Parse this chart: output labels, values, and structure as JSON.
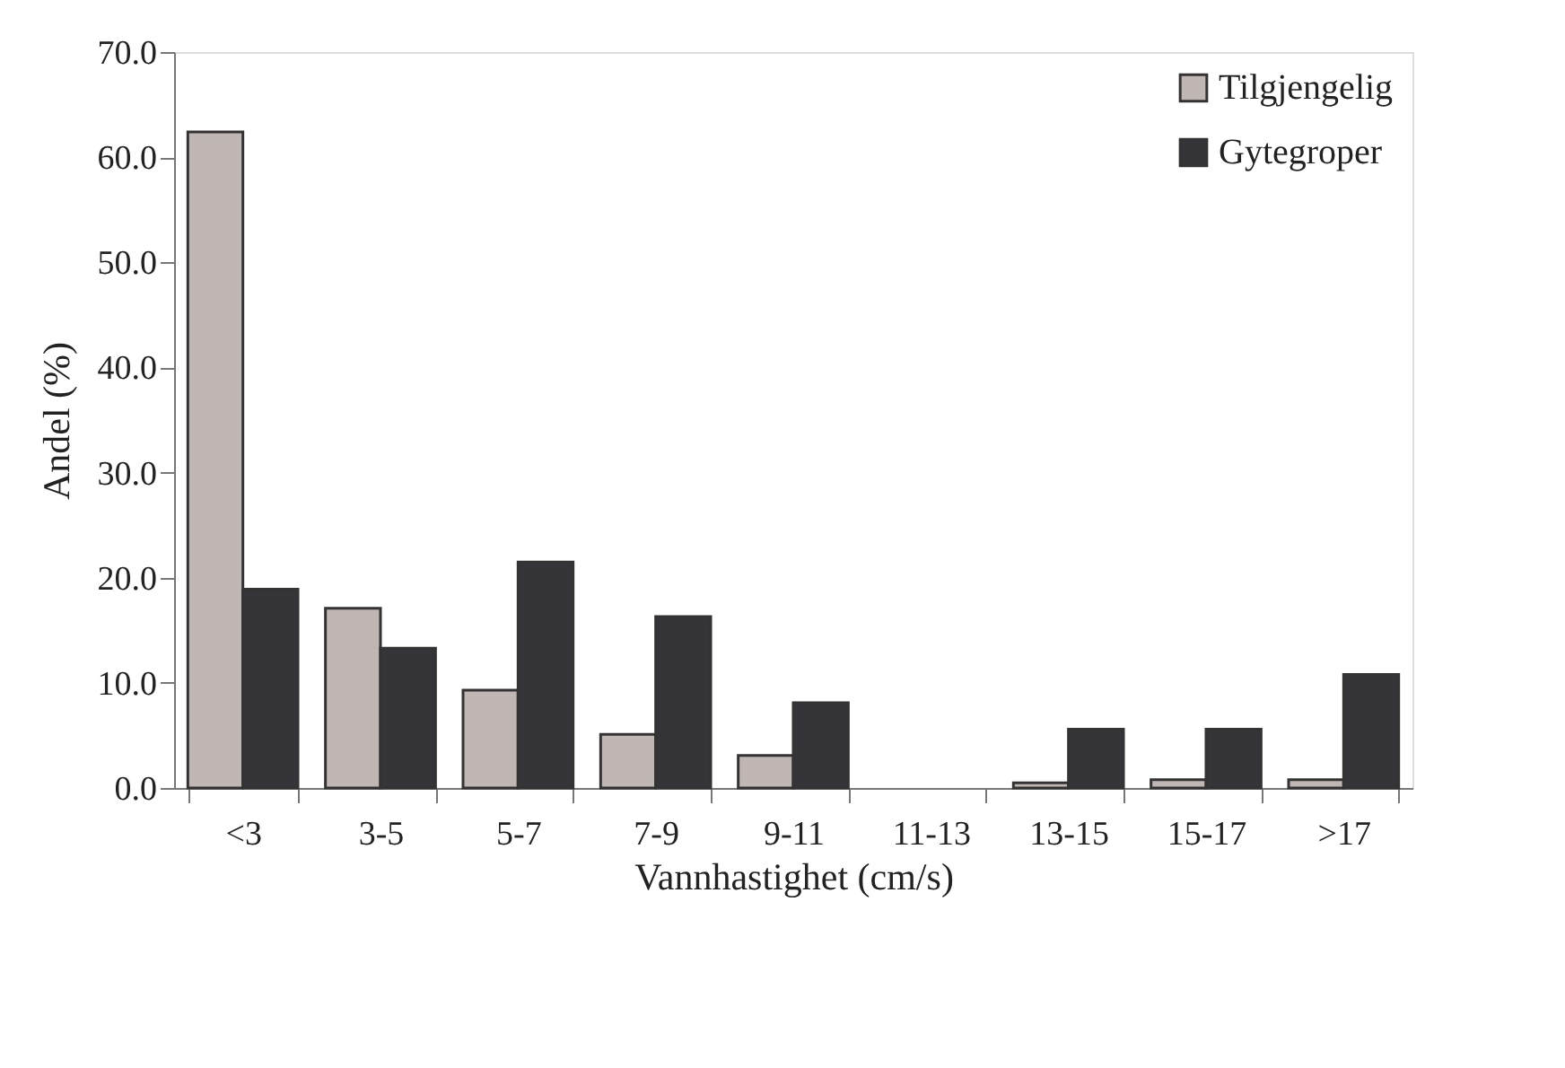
{
  "chart_data": {
    "type": "bar",
    "xlabel": "Vannhastighet (cm/s)",
    "ylabel": "Andel (%)",
    "categories": [
      "<3",
      "3-5",
      "5-7",
      "7-9",
      "9-11",
      "11-13",
      "13-15",
      "15-17",
      ">17"
    ],
    "series": [
      {
        "name": "Tilgjengelig",
        "color": "#c0b6b3",
        "values": [
          62.4,
          17.1,
          9.3,
          5.1,
          3.1,
          null,
          0.5,
          0.8,
          0.8
        ]
      },
      {
        "name": "Gytegroper",
        "color": "#353438",
        "values": [
          18.9,
          13.3,
          21.5,
          16.3,
          8.1,
          null,
          5.6,
          5.6,
          10.8
        ]
      }
    ],
    "ylim": [
      0,
      70
    ],
    "yticks": [
      {
        "value": 0,
        "label": "0.0"
      },
      {
        "value": 10,
        "label": "10.0"
      },
      {
        "value": 20,
        "label": "20.0"
      },
      {
        "value": 30,
        "label": "30.0"
      },
      {
        "value": 40,
        "label": "40.0"
      },
      {
        "value": 50,
        "label": "50.0"
      },
      {
        "value": 60,
        "label": "60.0"
      },
      {
        "value": 70,
        "label": "70.0"
      }
    ],
    "grid": false,
    "legend": "top right"
  }
}
